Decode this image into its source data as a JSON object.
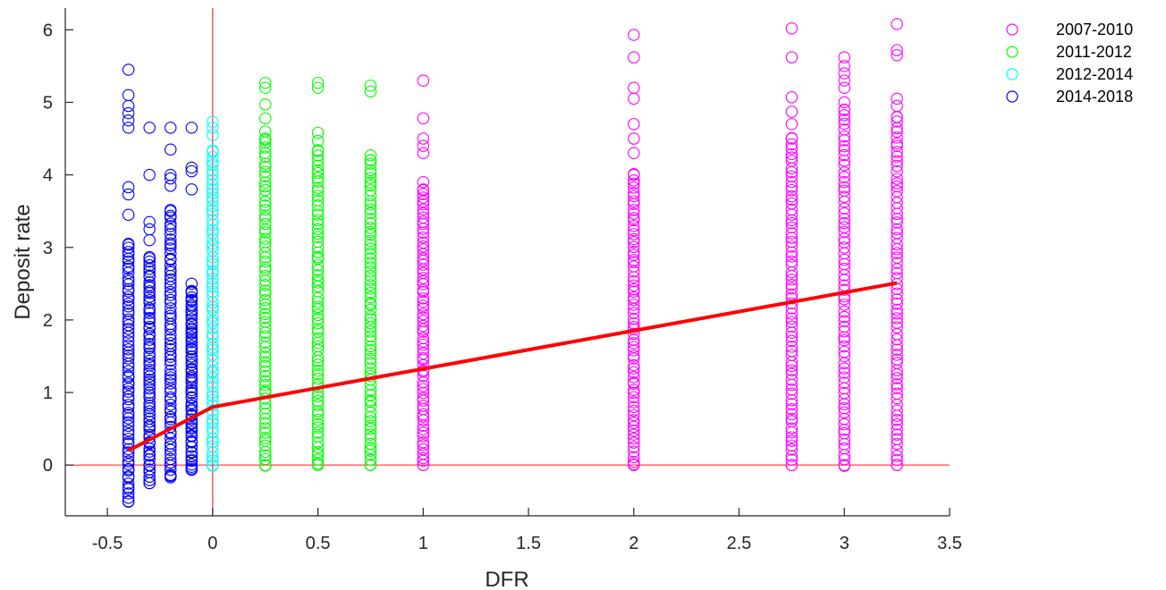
{
  "chart_data": {
    "type": "scatter",
    "xlabel": "DFR",
    "ylabel": "Deposit rate",
    "xlim": [
      -0.7,
      3.5
    ],
    "ylim": [
      -0.7,
      6.3
    ],
    "xticks": [
      "-0.5",
      "0",
      "0.5",
      "1",
      "1.5",
      "2",
      "2.5",
      "3",
      "3.5"
    ],
    "yticks": [
      "0",
      "1",
      "2",
      "3",
      "4",
      "5",
      "6"
    ],
    "reference_lines": {
      "x": 0,
      "y": 0,
      "color": "#ff3333"
    },
    "legend_position": "top-right-outside",
    "series": [
      {
        "name": "2007-2010",
        "color": "#ff00ff",
        "columns": [
          {
            "x": 1.0,
            "min": 0.0,
            "max": 5.3,
            "extra": [
              4.78,
              4.5,
              4.4,
              4.3,
              3.9,
              3.8
            ]
          },
          {
            "x": 2.0,
            "min": 0.0,
            "max": 5.93,
            "extra": [
              5.62,
              5.2,
              5.05,
              4.7,
              4.5,
              4.3,
              4.0
            ]
          },
          {
            "x": 2.75,
            "min": 0.0,
            "max": 6.02,
            "extra": [
              5.62,
              5.07,
              4.87,
              4.7,
              4.5
            ]
          },
          {
            "x": 3.0,
            "min": 0.0,
            "max": 5.62,
            "extra": [
              5.5,
              5.4,
              5.3,
              5.2,
              5.0,
              4.9
            ]
          },
          {
            "x": 3.25,
            "min": 0.0,
            "max": 6.08,
            "extra": [
              5.72,
              5.65,
              5.05,
              4.95,
              4.8
            ]
          }
        ]
      },
      {
        "name": "2011-2012",
        "color": "#00ff00",
        "columns": [
          {
            "x": 0.25,
            "min": 0.0,
            "max": 5.27,
            "extra": [
              5.2,
              4.97,
              4.78,
              4.6,
              4.5
            ]
          },
          {
            "x": 0.5,
            "min": 0.0,
            "max": 5.27,
            "extra": [
              5.2,
              4.58,
              4.47,
              4.33
            ]
          },
          {
            "x": 0.75,
            "min": 0.0,
            "max": 5.23,
            "extra": [
              5.15,
              4.27,
              4.2
            ]
          }
        ]
      },
      {
        "name": "2012-2014",
        "color": "#00ffff",
        "columns": [
          {
            "x": 0.0,
            "min": 0.0,
            "max": 4.73,
            "extra": [
              4.65,
              4.55,
              4.32
            ]
          }
        ]
      },
      {
        "name": "2014-2018",
        "color": "#0000ff",
        "columns": [
          {
            "x": -0.4,
            "min": -0.5,
            "max": 5.45,
            "extra": [
              5.1,
              4.95,
              4.85,
              4.75,
              4.65,
              3.83,
              3.73,
              3.45,
              3.05
            ]
          },
          {
            "x": -0.3,
            "min": -0.25,
            "max": 4.65,
            "extra": [
              4.0,
              3.35,
              3.25,
              3.1,
              2.85
            ]
          },
          {
            "x": -0.2,
            "min": -0.17,
            "max": 4.65,
            "extra": [
              4.35,
              4.0,
              3.95,
              3.85,
              3.5
            ]
          },
          {
            "x": -0.1,
            "min": -0.05,
            "max": 4.65,
            "extra": [
              4.1,
              4.05,
              3.8,
              2.5,
              2.4
            ]
          }
        ]
      }
    ],
    "fit_line": {
      "color": "#ff0000",
      "points": [
        {
          "x": -0.4,
          "y": 0.2
        },
        {
          "x": 0.0,
          "y": 0.8
        },
        {
          "x": 3.25,
          "y": 2.51
        }
      ]
    }
  }
}
